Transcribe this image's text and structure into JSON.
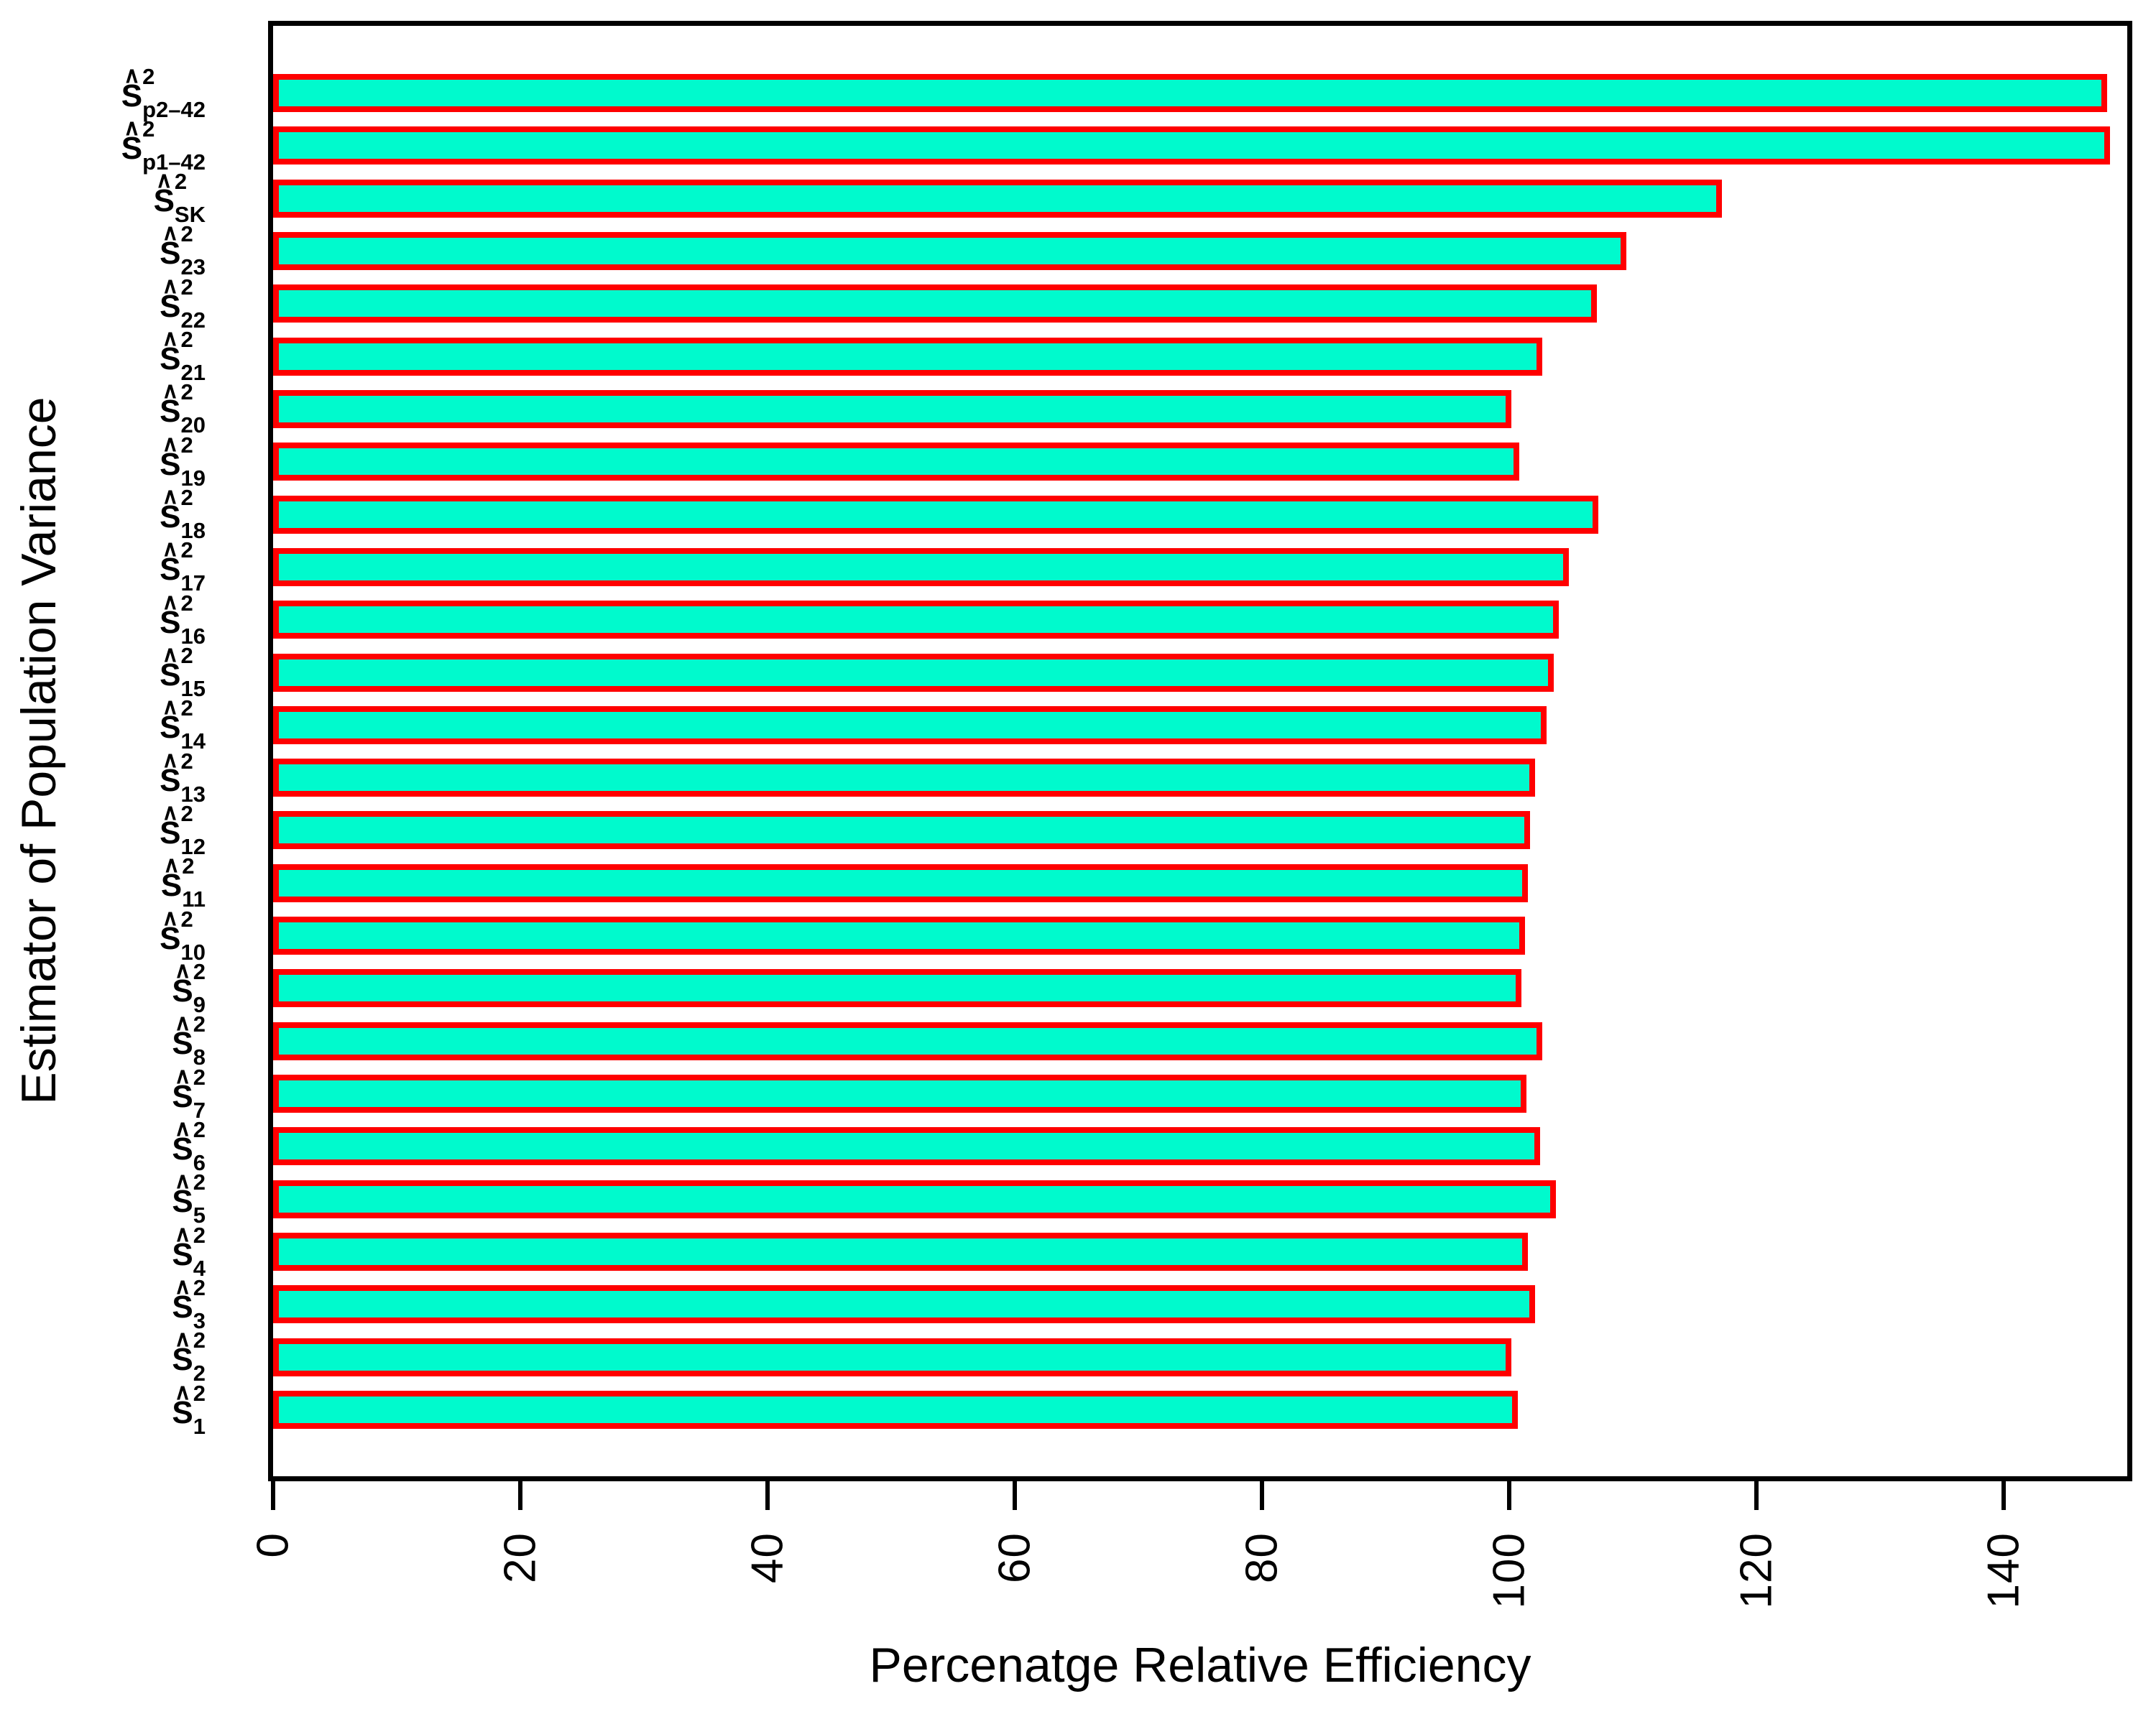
{
  "chart_data": {
    "type": "bar",
    "orientation": "horizontal",
    "title": "",
    "xlabel": "Percenatge Relative Efficiency",
    "ylabel": "Estimator of Population Variance",
    "xlim": [
      0,
      150
    ],
    "x_ticks": [
      0,
      20,
      40,
      60,
      80,
      100,
      120,
      140
    ],
    "grid": "off",
    "legend": "none",
    "bar_fill_color": "#00FACD",
    "bar_border_color": "#FF0000",
    "axis_color": "#000000",
    "background_color": "#FFFFFF",
    "estimator_notation": {
      "hat": "∧",
      "base": "S",
      "superscript": "2"
    },
    "bars": [
      {
        "label_subscript": "p2–42",
        "value": 148.4
      },
      {
        "label_subscript": "p1–42",
        "value": 148.6
      },
      {
        "label_subscript": "SK",
        "value": 117.2
      },
      {
        "label_subscript": "23",
        "value": 109.5
      },
      {
        "label_subscript": "22",
        "value": 107.1
      },
      {
        "label_subscript": "21",
        "value": 102.7
      },
      {
        "label_subscript": "20",
        "value": 100.2
      },
      {
        "label_subscript": "19",
        "value": 100.8
      },
      {
        "label_subscript": "18",
        "value": 107.2
      },
      {
        "label_subscript": "17",
        "value": 104.8
      },
      {
        "label_subscript": "16",
        "value": 104.0
      },
      {
        "label_subscript": "15",
        "value": 103.6
      },
      {
        "label_subscript": "14",
        "value": 103.0
      },
      {
        "label_subscript": "13",
        "value": 102.1
      },
      {
        "label_subscript": "12",
        "value": 101.7
      },
      {
        "label_subscript": "11",
        "value": 101.5
      },
      {
        "label_subscript": "10",
        "value": 101.3
      },
      {
        "label_subscript": "9",
        "value": 101.0
      },
      {
        "label_subscript": "8",
        "value": 102.7
      },
      {
        "label_subscript": "7",
        "value": 101.4
      },
      {
        "label_subscript": "6",
        "value": 102.5
      },
      {
        "label_subscript": "5",
        "value": 103.8
      },
      {
        "label_subscript": "4",
        "value": 101.5
      },
      {
        "label_subscript": "3",
        "value": 102.1
      },
      {
        "label_subscript": "2",
        "value": 100.2
      },
      {
        "label_subscript": "1",
        "value": 100.7
      }
    ]
  }
}
